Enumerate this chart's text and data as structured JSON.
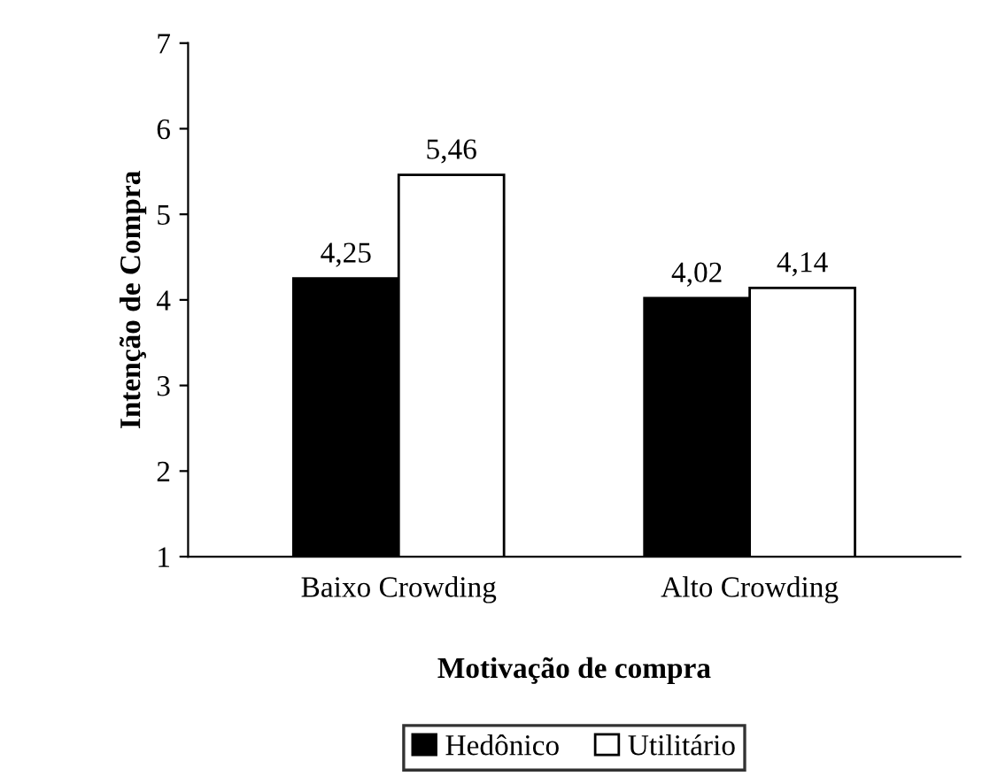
{
  "chart_data": {
    "type": "bar",
    "categories": [
      "Baixo Crowding",
      "Alto Crowding"
    ],
    "series": [
      {
        "name": "Hedônico",
        "color": "#000000",
        "values": [
          4.25,
          4.02
        ],
        "value_labels": [
          "4,25",
          "4,02"
        ]
      },
      {
        "name": "Utilitário",
        "color": "#ffffff",
        "values": [
          5.46,
          4.14
        ],
        "value_labels": [
          "5,46",
          "4,14"
        ]
      }
    ],
    "xlabel": "Motivação de compra",
    "ylabel": "Intenção de Compra",
    "ylim": [
      1,
      7
    ],
    "yticks": [
      1,
      2,
      3,
      4,
      5,
      6,
      7
    ],
    "grid": false,
    "legend": "bottom"
  }
}
